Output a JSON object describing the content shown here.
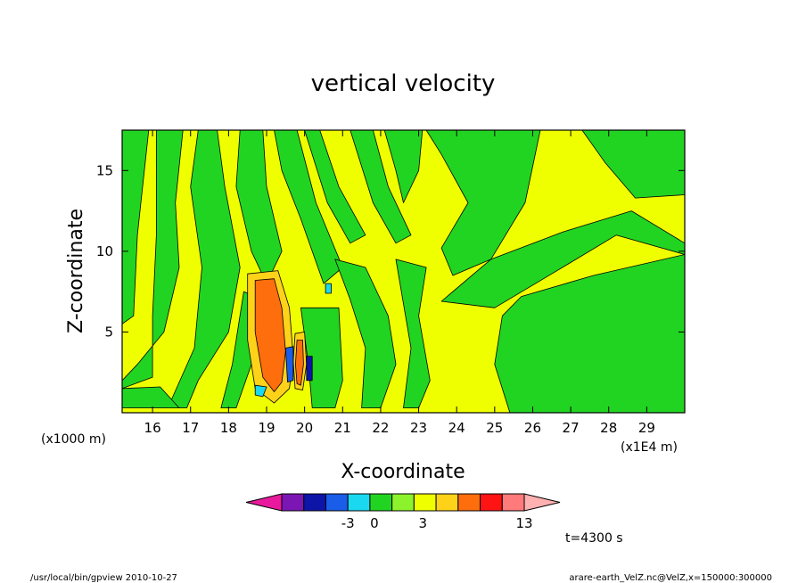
{
  "chart_data": {
    "type": "heatmap",
    "title": "vertical velocity",
    "xlabel": "X-coordinate",
    "ylabel": "Z-coordinate",
    "x_unit": "(x1E4 m)",
    "y_unit": "(x1000 m)",
    "xlim": [
      15.2,
      30.0
    ],
    "ylim": [
      0.0,
      17.5
    ],
    "x_ticks": [
      16,
      17,
      18,
      19,
      20,
      21,
      22,
      23,
      24,
      25,
      26,
      27,
      28,
      29
    ],
    "y_ticks": [
      5,
      10,
      15
    ],
    "x_tick_labels": [
      "16",
      "17",
      "18",
      "19",
      "20",
      "21",
      "22",
      "23",
      "24",
      "25",
      "26",
      "27",
      "28",
      "29"
    ],
    "y_tick_labels": [
      "5",
      "10",
      "15"
    ],
    "grid": false,
    "time_label": "t=4300 s",
    "colorbar": {
      "colors": [
        "#e8199c",
        "#7b16b5",
        "#0c15a8",
        "#1a5de8",
        "#1ad8f0",
        "#22d422",
        "#8cf22c",
        "#f0ff00",
        "#ffd21a",
        "#ff6e0c",
        "#ff1414",
        "#ff7a7a",
        "#ffb0b0"
      ],
      "tick_labels": [
        "-3",
        "0",
        "3",
        "13"
      ]
    },
    "background_color": "#f0ff00",
    "positive_weak_color": "#f0ff00",
    "negative_weak_color": "#22d422",
    "strong_updraft_color": "#ff6e0c"
  },
  "footer": {
    "left": "/usr/local/bin/gpview   2010-10-27",
    "right": "arare-earth_VelZ.nc@VelZ,x=150000:300000"
  }
}
